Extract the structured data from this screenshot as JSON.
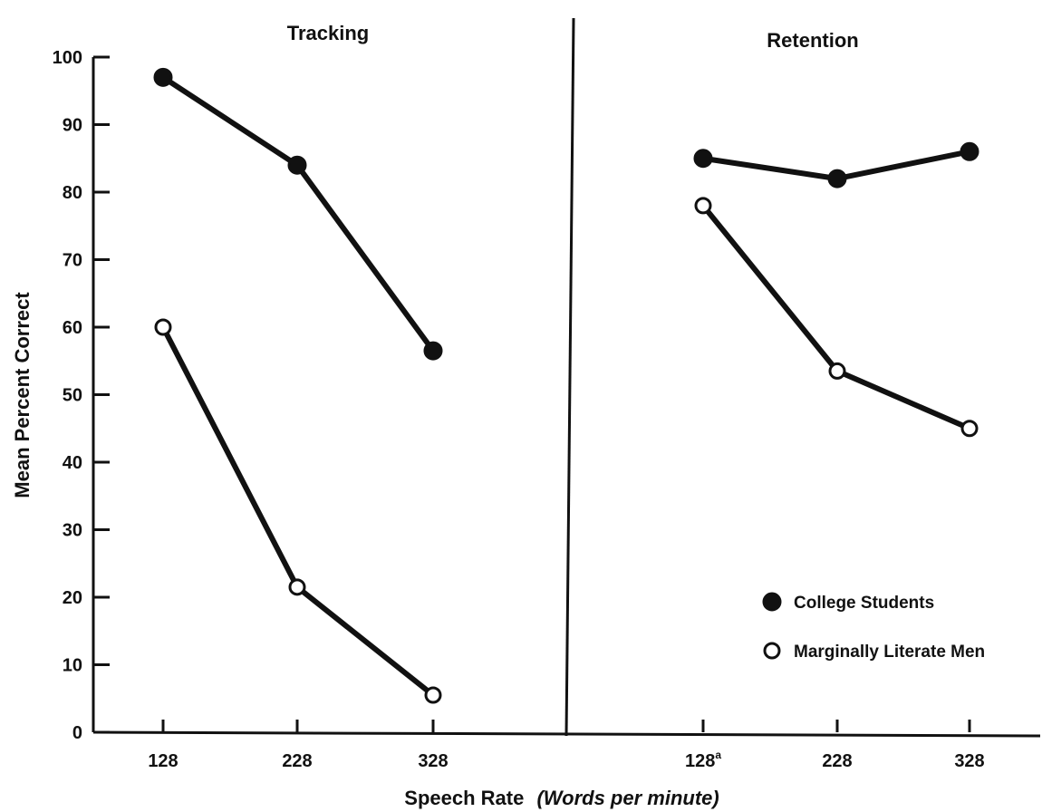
{
  "chart_data": {
    "type": "line",
    "ylabel": "Mean Percent Correct",
    "xlabel": "Speech Rate",
    "xlabel_italic": "(Words per minute)",
    "ylim": [
      0,
      100
    ],
    "yticks": [
      "0",
      "10",
      "20",
      "30",
      "40",
      "50",
      "60",
      "70",
      "80",
      "90",
      "100"
    ],
    "legend_position": "bottom-right",
    "series_names": [
      "College Students",
      "Marginally Literate Men"
    ],
    "panels": [
      {
        "title": "Tracking",
        "categories": [
          "128",
          "228",
          "328"
        ],
        "series": [
          {
            "name": "College Students",
            "marker": "filled",
            "values": [
              97,
              84,
              56.5
            ]
          },
          {
            "name": "Marginally Literate Men",
            "marker": "open",
            "values": [
              60,
              21.5,
              5.5
            ]
          }
        ]
      },
      {
        "title": "Retention",
        "categories": [
          "128",
          "228",
          "328"
        ],
        "category_superscripts": [
          "a",
          "",
          ""
        ],
        "series": [
          {
            "name": "College Students",
            "marker": "filled",
            "values": [
              85,
              82,
              86
            ]
          },
          {
            "name": "Marginally Literate Men",
            "marker": "open",
            "values": [
              78,
              53.5,
              45
            ]
          }
        ]
      }
    ]
  }
}
